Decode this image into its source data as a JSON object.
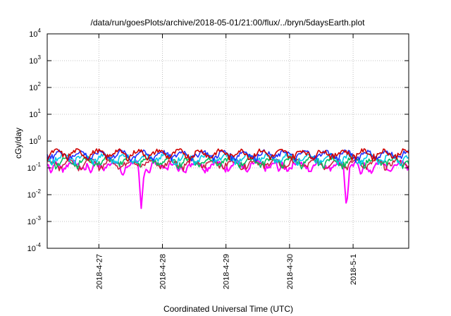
{
  "chart_data": {
    "type": "line",
    "title": "/data/run/goesPlots/archive/2018-05-01/21:00/flux/../bryn/5daysEarth.plot",
    "xlabel": "Coordinated Universal Time (UTC)",
    "ylabel": "cGy/day",
    "yscale": "log",
    "ylim": [
      0.0001,
      10000
    ],
    "xlim": [
      "2018-04-26 04:30",
      "2018-05-01 21:00"
    ],
    "grid": true,
    "y_ticks": [
      {
        "base": "10",
        "exp": "4",
        "value": 10000
      },
      {
        "base": "10",
        "exp": "3",
        "value": 1000
      },
      {
        "base": "10",
        "exp": "2",
        "value": 100
      },
      {
        "base": "10",
        "exp": "1",
        "value": 10
      },
      {
        "base": "10",
        "exp": "0",
        "value": 1
      },
      {
        "base": "10",
        "exp": "-1",
        "value": 0.1
      },
      {
        "base": "10",
        "exp": "-2",
        "value": 0.01
      },
      {
        "base": "10",
        "exp": "-3",
        "value": 0.001
      },
      {
        "base": "10",
        "exp": "-4",
        "value": 0.0001
      }
    ],
    "x_ticks": [
      {
        "label": "2018-4-27",
        "value": "2018-04-27 00:00"
      },
      {
        "label": "2018-4-28",
        "value": "2018-04-28 00:00"
      },
      {
        "label": "2018-4-29",
        "value": "2018-04-29 00:00"
      },
      {
        "label": "2018-4-30",
        "value": "2018-04-30 00:00"
      },
      {
        "label": "2018-5-1",
        "value": "2018-05-01 00:00"
      }
    ],
    "series": [
      {
        "color": "#ff00ff",
        "base": 0.13,
        "dips": [
          {
            "at": "2018-04-27 16:00",
            "min": 0.003
          },
          {
            "at": "2018-04-30 21:30",
            "min": 0.003
          },
          {
            "at": "2018-04-26 06:00",
            "min": 0.06
          },
          {
            "at": "2018-04-26 21:00",
            "min": 0.06
          },
          {
            "at": "2018-04-27 09:00",
            "min": 0.05
          },
          {
            "at": "2018-04-27 19:00",
            "min": 0.06
          },
          {
            "at": "2018-04-28 06:00",
            "min": 0.07
          },
          {
            "at": "2018-04-29 08:00",
            "min": 0.07
          },
          {
            "at": "2018-04-29 20:00",
            "min": 0.07
          },
          {
            "at": "2018-04-30 08:00",
            "min": 0.07
          },
          {
            "at": "2018-05-01 03:00",
            "min": 0.05
          },
          {
            "at": "2018-05-01 07:00",
            "min": 0.06
          },
          {
            "at": "2018-05-01 14:00",
            "min": 0.07
          }
        ]
      },
      {
        "color": "#cc2244",
        "base": 0.15
      },
      {
        "color": "#00c060",
        "base": 0.18
      },
      {
        "color": "#00c8e8",
        "base": 0.24
      },
      {
        "color": "#2030ff",
        "base": 0.32
      },
      {
        "color": "#d00000",
        "base": 0.35
      }
    ]
  }
}
